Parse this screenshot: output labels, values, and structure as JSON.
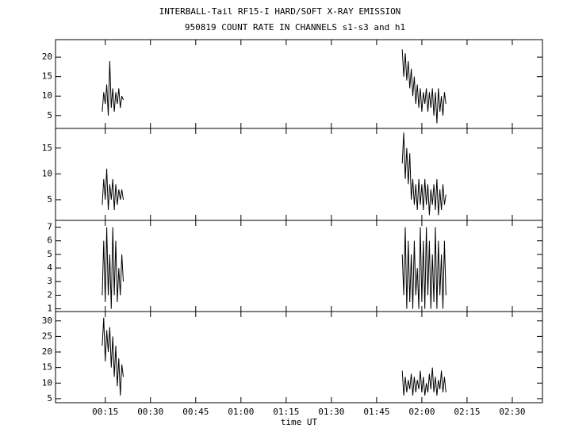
{
  "chart_data": [
    {
      "type": "line",
      "title": "INTERBALL-Tail RF15-I HARD/SOFT X-RAY EMISSION",
      "subtitle": "950819  COUNT RATE IN CHANNELS s1-s3 and h1",
      "color": "#000000",
      "xlim": [
        -1.5,
        160
      ],
      "x": [
        14,
        14.5,
        15,
        15.5,
        16,
        16.5,
        17,
        17.5,
        18,
        18.5,
        19,
        19.5,
        20,
        20.5,
        21,
        67,
        113.5,
        114,
        114.5,
        115,
        115.5,
        116,
        116.5,
        117,
        117.5,
        118,
        118.5,
        119,
        119.5,
        120,
        120.5,
        121,
        121.5,
        122,
        122.5,
        123,
        123.5,
        124,
        124.5,
        125,
        125.5,
        126,
        126.5,
        127,
        127.5,
        128
      ],
      "values": [
        6,
        11,
        8,
        13,
        5,
        19,
        7,
        12,
        6,
        11,
        8,
        12,
        7,
        10,
        9,
        null,
        22,
        15,
        21,
        14,
        19,
        12,
        17,
        10,
        15,
        8,
        13,
        7,
        12,
        6,
        11,
        8,
        12,
        6,
        11,
        7,
        12,
        5,
        11,
        3,
        12,
        6,
        10,
        5,
        11,
        8
      ],
      "ylim": [
        1.7,
        24.5
      ],
      "yticks": [
        5,
        10,
        15,
        20
      ]
    },
    {
      "type": "line",
      "color": "#000000",
      "xlim": [
        -1.5,
        160
      ],
      "x": [
        14,
        14.5,
        15,
        15.5,
        16,
        16.5,
        17,
        17.5,
        18,
        18.5,
        19,
        19.5,
        20,
        20.5,
        21,
        67,
        113.5,
        114,
        114.5,
        115,
        115.5,
        116,
        116.5,
        117,
        117.5,
        118,
        118.5,
        119,
        119.5,
        120,
        120.5,
        121,
        121.5,
        122,
        122.5,
        123,
        123.5,
        124,
        124.5,
        125,
        125.5,
        126,
        126.5,
        127,
        127.5,
        128
      ],
      "values": [
        4,
        9,
        5,
        11,
        3,
        8,
        5,
        9,
        3,
        8,
        4,
        7,
        5,
        7,
        5,
        null,
        12,
        18,
        9,
        15,
        8,
        14,
        5,
        9,
        4,
        8,
        3,
        9,
        4,
        8,
        3,
        9,
        4,
        8,
        2,
        7,
        4,
        8,
        3,
        9,
        2,
        7,
        3,
        8,
        4,
        6
      ],
      "ylim": [
        1,
        18.8
      ],
      "yticks": [
        5,
        10,
        15
      ]
    },
    {
      "type": "line",
      "color": "#000000",
      "xlim": [
        -1.5,
        160
      ],
      "x": [
        14,
        14.5,
        15,
        15.5,
        16,
        16.5,
        17,
        17.5,
        18,
        18.5,
        19,
        19.5,
        20,
        20.5,
        21,
        67,
        113.5,
        114,
        114.5,
        115,
        115.5,
        116,
        116.5,
        117,
        117.5,
        118,
        118.5,
        119,
        119.5,
        120,
        120.5,
        121,
        121.5,
        122,
        122.5,
        123,
        123.5,
        124,
        124.5,
        125,
        125.5,
        126,
        126.5,
        127,
        127.5,
        128
      ],
      "values": [
        2,
        6,
        1.5,
        7,
        2,
        5,
        1,
        7,
        2,
        6,
        1.5,
        4,
        2,
        5,
        3,
        null,
        5,
        2,
        7,
        1,
        6,
        1.5,
        5,
        1,
        6,
        2,
        4,
        1,
        7,
        1.5,
        6,
        1,
        7,
        2,
        6,
        1,
        5,
        1.5,
        7,
        1,
        6,
        2,
        5,
        1,
        6,
        2
      ],
      "ylim": [
        0.8,
        7.5
      ],
      "yticks": [
        1,
        2,
        3,
        4,
        5,
        6,
        7
      ]
    },
    {
      "type": "line",
      "color": "#000000",
      "xlim": [
        -1.5,
        160
      ],
      "xlabel": "time UT",
      "xticks": [
        {
          "value": 15,
          "label": "00:15"
        },
        {
          "value": 30,
          "label": "00:30"
        },
        {
          "value": 45,
          "label": "00:45"
        },
        {
          "value": 60,
          "label": "01:00"
        },
        {
          "value": 75,
          "label": "01:15"
        },
        {
          "value": 90,
          "label": "01:30"
        },
        {
          "value": 105,
          "label": "01:45"
        },
        {
          "value": 120,
          "label": "02:00"
        },
        {
          "value": 135,
          "label": "02:15"
        },
        {
          "value": 150,
          "label": "02:30"
        }
      ],
      "x": [
        14,
        14.5,
        15,
        15.5,
        16,
        16.5,
        17,
        17.5,
        18,
        18.5,
        19,
        19.5,
        20,
        20.5,
        21,
        67,
        113.5,
        114,
        114.5,
        115,
        115.5,
        116,
        116.5,
        117,
        117.5,
        118,
        118.5,
        119,
        119.5,
        120,
        120.5,
        121,
        121.5,
        122,
        122.5,
        123,
        123.5,
        124,
        124.5,
        125,
        125.5,
        126,
        126.5,
        127,
        127.5,
        128
      ],
      "values": [
        22,
        31,
        17,
        27,
        20,
        28,
        15,
        25,
        12,
        22,
        9,
        18,
        6,
        16,
        12,
        null,
        14,
        6,
        12,
        7,
        11,
        8,
        13,
        6,
        12,
        7,
        11,
        8,
        14,
        7,
        12,
        6,
        10,
        7,
        13,
        8,
        15,
        7,
        12,
        6,
        11,
        8,
        14,
        7,
        12,
        7
      ],
      "ylim": [
        3.7,
        33
      ],
      "yticks": [
        5,
        10,
        15,
        20,
        25,
        30
      ]
    }
  ]
}
